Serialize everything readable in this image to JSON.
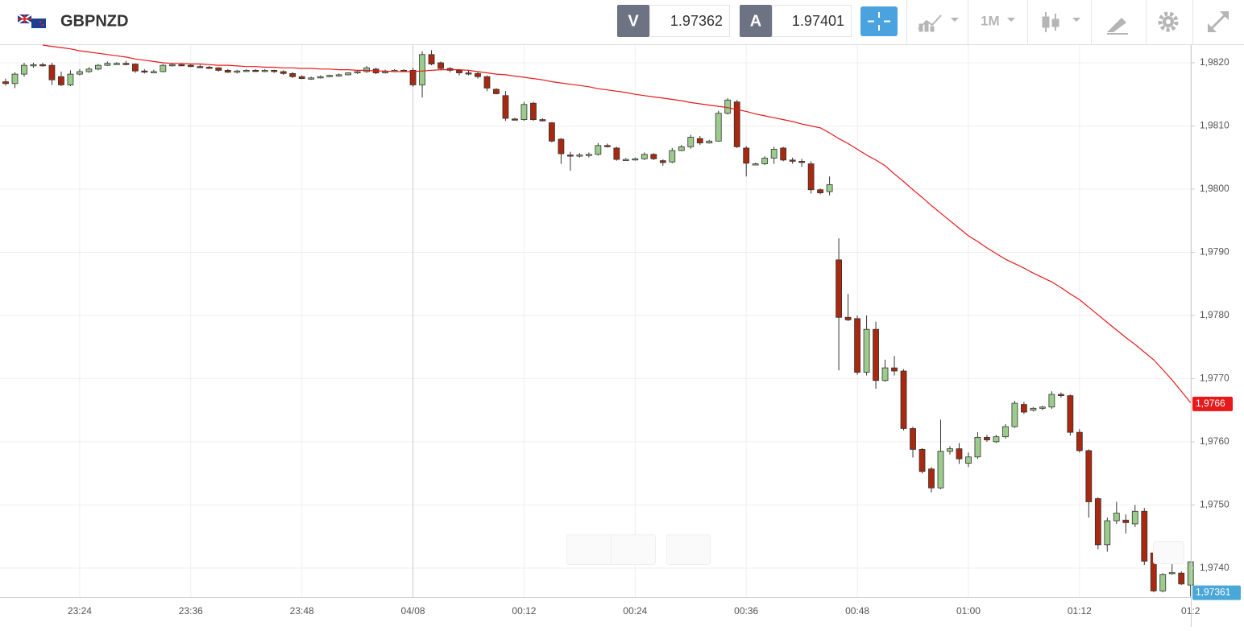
{
  "header": {
    "symbol": "GBPNZD",
    "bid_label": "V",
    "bid": "1.97362",
    "ask_label": "A",
    "ask": "1.97401",
    "timeframe": "1M"
  },
  "chart_data": {
    "type": "candlestick",
    "up_color": "#9ccc8c",
    "down_color": "#a8290f",
    "ylim": [
      1.97354,
      1.98228
    ],
    "yticks": [
      {
        "value": 1.974,
        "label": "1,9740"
      },
      {
        "value": 1.975,
        "label": "1,9750"
      },
      {
        "value": 1.976,
        "label": "1,9760"
      },
      {
        "value": 1.977,
        "label": "1,9770"
      },
      {
        "value": 1.978,
        "label": "1,9780"
      },
      {
        "value": 1.979,
        "label": "1,9790"
      },
      {
        "value": 1.98,
        "label": "1,9800"
      },
      {
        "value": 1.981,
        "label": "1,9810"
      },
      {
        "value": 1.982,
        "label": "1,9820"
      }
    ],
    "grid": true,
    "categories": [
      null,
      null,
      null,
      null,
      null,
      null,
      null,
      null,
      "23:24",
      null,
      null,
      null,
      null,
      null,
      null,
      null,
      null,
      null,
      null,
      null,
      "23:36",
      null,
      null,
      null,
      null,
      null,
      null,
      null,
      null,
      null,
      null,
      null,
      "23:48",
      null,
      null,
      null,
      null,
      null,
      null,
      null,
      null,
      null,
      null,
      null,
      "04/08",
      null,
      null,
      null,
      null,
      null,
      null,
      null,
      null,
      null,
      null,
      null,
      "00:12",
      null,
      null,
      null,
      null,
      null,
      null,
      null,
      null,
      null,
      null,
      null,
      "00:24",
      null,
      null,
      null,
      null,
      null,
      null,
      null,
      null,
      null,
      null,
      null,
      "00:36",
      null,
      null,
      null,
      null,
      null,
      null,
      null,
      null,
      null,
      null,
      null,
      "00:48",
      null,
      null,
      null,
      null,
      null,
      null,
      null,
      null,
      null,
      null,
      null,
      "01:00",
      null,
      null,
      null,
      null,
      null,
      null,
      null,
      null,
      null,
      null,
      null,
      "01:12",
      null,
      null,
      null,
      null,
      null,
      null,
      null,
      null,
      null,
      null,
      null,
      "01:2"
    ],
    "ohlc": [
      [
        1.9817,
        1.98175,
        1.98164,
        1.98167
      ],
      [
        1.98167,
        1.98185,
        1.9816,
        1.98182
      ],
      [
        1.98182,
        1.982,
        1.98178,
        1.98196
      ],
      [
        1.98196,
        1.982,
        1.98192,
        1.98197
      ],
      [
        1.98197,
        1.982,
        1.98194,
        1.98196
      ],
      [
        1.98196,
        1.982,
        1.98165,
        1.98173
      ],
      [
        1.98178,
        1.98186,
        1.98163,
        1.98165
      ],
      [
        1.98165,
        1.98188,
        1.98163,
        1.98182
      ],
      [
        1.98182,
        1.9819,
        1.9818,
        1.98186
      ],
      [
        1.98186,
        1.98193,
        1.98184,
        1.9819
      ],
      [
        1.9819,
        1.98198,
        1.98188,
        1.98196
      ],
      [
        1.98196,
        1.98202,
        1.98195,
        1.98199
      ],
      [
        1.98199,
        1.98201,
        1.98197,
        1.98199
      ],
      [
        1.98199,
        1.98203,
        1.98196,
        1.98198
      ],
      [
        1.98198,
        1.98199,
        1.98184,
        1.98187
      ],
      [
        1.98187,
        1.9819,
        1.98183,
        1.98186
      ],
      [
        1.98186,
        1.98189,
        1.98184,
        1.98186
      ],
      [
        1.98186,
        1.98198,
        1.98185,
        1.98196
      ],
      [
        1.98196,
        1.982,
        1.98194,
        1.98197
      ],
      [
        1.98197,
        1.98199,
        1.98195,
        1.98196
      ],
      [
        1.98196,
        1.98198,
        1.98193,
        1.98194
      ],
      [
        1.98194,
        1.98197,
        1.98192,
        1.98193
      ],
      [
        1.98193,
        1.98195,
        1.9819,
        1.98192
      ],
      [
        1.98192,
        1.98193,
        1.98186,
        1.98188
      ],
      [
        1.98188,
        1.9819,
        1.98184,
        1.98185
      ],
      [
        1.98185,
        1.98189,
        1.98183,
        1.98187
      ],
      [
        1.98187,
        1.9819,
        1.98186,
        1.98188
      ],
      [
        1.98188,
        1.9819,
        1.98186,
        1.98187
      ],
      [
        1.98187,
        1.9819,
        1.98185,
        1.98188
      ],
      [
        1.98188,
        1.98189,
        1.98184,
        1.98186
      ],
      [
        1.98186,
        1.98188,
        1.98181,
        1.98183
      ],
      [
        1.98183,
        1.98185,
        1.98176,
        1.98178
      ],
      [
        1.98178,
        1.9818,
        1.98174,
        1.98175
      ],
      [
        1.98175,
        1.98178,
        1.98173,
        1.98176
      ],
      [
        1.98176,
        1.9818,
        1.98175,
        1.98178
      ],
      [
        1.98178,
        1.98181,
        1.98177,
        1.9818
      ],
      [
        1.9818,
        1.98183,
        1.98178,
        1.98181
      ],
      [
        1.98181,
        1.98185,
        1.9818,
        1.98184
      ],
      [
        1.98184,
        1.98188,
        1.98182,
        1.98186
      ],
      [
        1.98186,
        1.98195,
        1.98184,
        1.98192
      ],
      [
        1.9819,
        1.98192,
        1.98182,
        1.98184
      ],
      [
        1.98184,
        1.98189,
        1.98183,
        1.98186
      ],
      [
        1.98186,
        1.9819,
        1.98185,
        1.98188
      ],
      [
        1.98188,
        1.9819,
        1.98186,
        1.98187
      ],
      [
        1.98188,
        1.98192,
        1.98162,
        1.98165
      ],
      [
        1.98165,
        1.98218,
        1.98145,
        1.98213
      ],
      [
        1.98213,
        1.9822,
        1.98196,
        1.98198
      ],
      [
        1.982,
        1.98202,
        1.98188,
        1.98191
      ],
      [
        1.98191,
        1.98193,
        1.98185,
        1.98188
      ],
      [
        1.98188,
        1.9819,
        1.9818,
        1.98184
      ],
      [
        1.98184,
        1.98188,
        1.9818,
        1.98183
      ],
      [
        1.98183,
        1.98185,
        1.98175,
        1.98178
      ],
      [
        1.98178,
        1.9818,
        1.98155,
        1.9816
      ],
      [
        1.98158,
        1.9816,
        1.9815,
        1.98151
      ],
      [
        1.98148,
        1.98155,
        1.98108,
        1.98112
      ],
      [
        1.98111,
        1.98113,
        1.98109,
        1.9811
      ],
      [
        1.9811,
        1.98138,
        1.98108,
        1.98134
      ],
      [
        1.98136,
        1.98138,
        1.98108,
        1.9811
      ],
      [
        1.9811,
        1.98112,
        1.98107,
        1.98108
      ],
      [
        1.98105,
        1.98106,
        1.98074,
        1.98076
      ],
      [
        1.98079,
        1.98081,
        1.9804,
        1.98056
      ],
      [
        1.98054,
        1.98059,
        1.98029,
        1.98053
      ],
      [
        1.98053,
        1.98057,
        1.9805,
        1.98054
      ],
      [
        1.98054,
        1.98058,
        1.9805,
        1.98055
      ],
      [
        1.98055,
        1.98073,
        1.98053,
        1.98069
      ],
      [
        1.98069,
        1.98072,
        1.98066,
        1.98068
      ],
      [
        1.98065,
        1.98067,
        1.98045,
        1.98047
      ],
      [
        1.98047,
        1.98049,
        1.98045,
        1.98047
      ],
      [
        1.98047,
        1.9805,
        1.98045,
        1.98048
      ],
      [
        1.98048,
        1.98058,
        1.98046,
        1.98055
      ],
      [
        1.98055,
        1.98057,
        1.98046,
        1.98048
      ],
      [
        1.98045,
        1.98047,
        1.98037,
        1.98042
      ],
      [
        1.98043,
        1.98065,
        1.98041,
        1.98061
      ],
      [
        1.98061,
        1.9807,
        1.9806,
        1.98067
      ],
      [
        1.98067,
        1.98086,
        1.98064,
        1.98082
      ],
      [
        1.9808,
        1.98084,
        1.9807,
        1.98073
      ],
      [
        1.98073,
        1.98078,
        1.98072,
        1.98076
      ],
      [
        1.98076,
        1.98124,
        1.98075,
        1.9812
      ],
      [
        1.9812,
        1.98144,
        1.98118,
        1.98141
      ],
      [
        1.98138,
        1.98141,
        1.98065,
        1.98067
      ],
      [
        1.98065,
        1.98068,
        1.9802,
        1.98041
      ],
      [
        1.9804,
        1.98042,
        1.98038,
        1.9804
      ],
      [
        1.9804,
        1.98052,
        1.98038,
        1.98049
      ],
      [
        1.98049,
        1.98067,
        1.9804,
        1.98063
      ],
      [
        1.98065,
        1.98067,
        1.98044,
        1.98046
      ],
      [
        1.98046,
        1.9805,
        1.9804,
        1.98044
      ],
      [
        1.98044,
        1.98048,
        1.98035,
        1.98043
      ],
      [
        1.9804,
        1.98044,
        1.97993,
        1.97999
      ],
      [
        1.97999,
        1.98001,
        1.97992,
        1.97994
      ],
      [
        1.97996,
        1.9802,
        1.9799,
        1.98007
      ],
      [
        1.97888,
        1.97922,
        1.97713,
        1.97797
      ],
      [
        1.97797,
        1.97834,
        1.97791,
        1.97793
      ],
      [
        1.97795,
        1.978,
        1.97706,
        1.9771
      ],
      [
        1.9771,
        1.978,
        1.97705,
        1.97778
      ],
      [
        1.97778,
        1.9779,
        1.97684,
        1.97697
      ],
      [
        1.97697,
        1.9773,
        1.97695,
        1.97717
      ],
      [
        1.97717,
        1.97736,
        1.97705,
        1.97712
      ],
      [
        1.97712,
        1.97715,
        1.97618,
        1.97621
      ],
      [
        1.97621,
        1.97624,
        1.97575,
        1.97588
      ],
      [
        1.97588,
        1.9759,
        1.9755,
        1.97553
      ],
      [
        1.97557,
        1.9756,
        1.9752,
        1.97527
      ],
      [
        1.97527,
        1.97635,
        1.97525,
        1.97585
      ],
      [
        1.97585,
        1.97593,
        1.9758,
        1.97589
      ],
      [
        1.97589,
        1.97598,
        1.97565,
        1.97573
      ],
      [
        1.97566,
        1.97583,
        1.9756,
        1.97576
      ],
      [
        1.97576,
        1.97615,
        1.97573,
        1.97607
      ],
      [
        1.97607,
        1.97611,
        1.976,
        1.97603
      ],
      [
        1.976,
        1.97611,
        1.97598,
        1.97608
      ],
      [
        1.97608,
        1.97628,
        1.97605,
        1.97624
      ],
      [
        1.97624,
        1.97665,
        1.97622,
        1.97661
      ],
      [
        1.97659,
        1.97663,
        1.97644,
        1.97647
      ],
      [
        1.9765,
        1.97655,
        1.97648,
        1.97653
      ],
      [
        1.97653,
        1.97657,
        1.9765,
        1.97655
      ],
      [
        1.97655,
        1.9768,
        1.97652,
        1.97675
      ],
      [
        1.97675,
        1.97678,
        1.9767,
        1.97673
      ],
      [
        1.97673,
        1.97675,
        1.9761,
        1.97615
      ],
      [
        1.97615,
        1.9762,
        1.97583,
        1.97586
      ],
      [
        1.97586,
        1.97588,
        1.9748,
        1.97505
      ],
      [
        1.9751,
        1.97512,
        1.9743,
        1.97437
      ],
      [
        1.97437,
        1.9748,
        1.97426,
        1.97475
      ],
      [
        1.97475,
        1.97505,
        1.9747,
        1.97487
      ],
      [
        1.97476,
        1.97485,
        1.97455,
        1.97472
      ],
      [
        1.9747,
        1.975,
        1.97465,
        1.9749
      ],
      [
        1.9749,
        1.97495,
        1.97405,
        1.97411
      ],
      [
        1.97424,
        1.97428,
        1.97362,
        1.97364
      ],
      [
        1.97364,
        1.97392,
        1.97362,
        1.9739
      ],
      [
        1.97392,
        1.97408,
        1.9739,
        1.97393
      ],
      [
        1.97392,
        1.97395,
        1.97373,
        1.97375
      ],
      [
        1.97373,
        1.97408,
        1.97355,
        1.9741
      ]
    ],
    "ma": {
      "color": "#e8191b",
      "values": [
        null,
        null,
        null,
        null,
        1.98228,
        1.98226,
        1.98224,
        1.98222,
        1.98219,
        1.98217,
        1.98215,
        1.98213,
        1.98211,
        1.98209,
        1.98206,
        1.98204,
        1.98202,
        1.982,
        1.98199,
        1.98199,
        1.98198,
        1.98198,
        1.98197,
        1.98196,
        1.98196,
        1.98195,
        1.98194,
        1.98194,
        1.98193,
        1.98193,
        1.98192,
        1.98192,
        1.98191,
        1.98191,
        1.9819,
        1.9819,
        1.98189,
        1.98189,
        1.98188,
        1.98188,
        1.98187,
        1.98187,
        1.98186,
        1.98186,
        1.98186,
        1.98187,
        1.98188,
        1.98189,
        1.98189,
        1.98189,
        1.98188,
        1.98186,
        1.98184,
        1.98182,
        1.98181,
        1.98179,
        1.98177,
        1.98175,
        1.98173,
        1.9817,
        1.98168,
        1.98166,
        1.98164,
        1.98162,
        1.98159,
        1.98157,
        1.98155,
        1.98153,
        1.9815,
        1.98148,
        1.98146,
        1.98144,
        1.98142,
        1.9814,
        1.98137,
        1.98135,
        1.98133,
        1.98131,
        1.98129,
        1.98126,
        1.98123,
        1.98119,
        1.98116,
        1.98113,
        1.9811,
        1.98107,
        1.98103,
        1.981,
        1.98097,
        1.98089,
        1.9808,
        1.98072,
        1.98063,
        1.98054,
        1.98046,
        1.98037,
        1.98024,
        1.98012,
        1.97999,
        1.97987,
        1.97974,
        1.97962,
        1.9795,
        1.97938,
        1.97926,
        1.97917,
        1.97907,
        1.97898,
        1.97889,
        1.97882,
        1.97875,
        1.97867,
        1.9786,
        1.97853,
        1.97844,
        1.97834,
        1.97825,
        1.97813,
        1.97801,
        1.97789,
        1.97777,
        1.97765,
        1.97754,
        1.97742,
        1.9773,
        1.97714,
        1.97698,
        1.9768,
        1.97662
      ],
      "last_label": {
        "value": 1.9766,
        "label": "1,9766"
      }
    },
    "last_price": {
      "value": 1.97361,
      "label": "1,97361",
      "color": "#4aa8d8"
    }
  }
}
